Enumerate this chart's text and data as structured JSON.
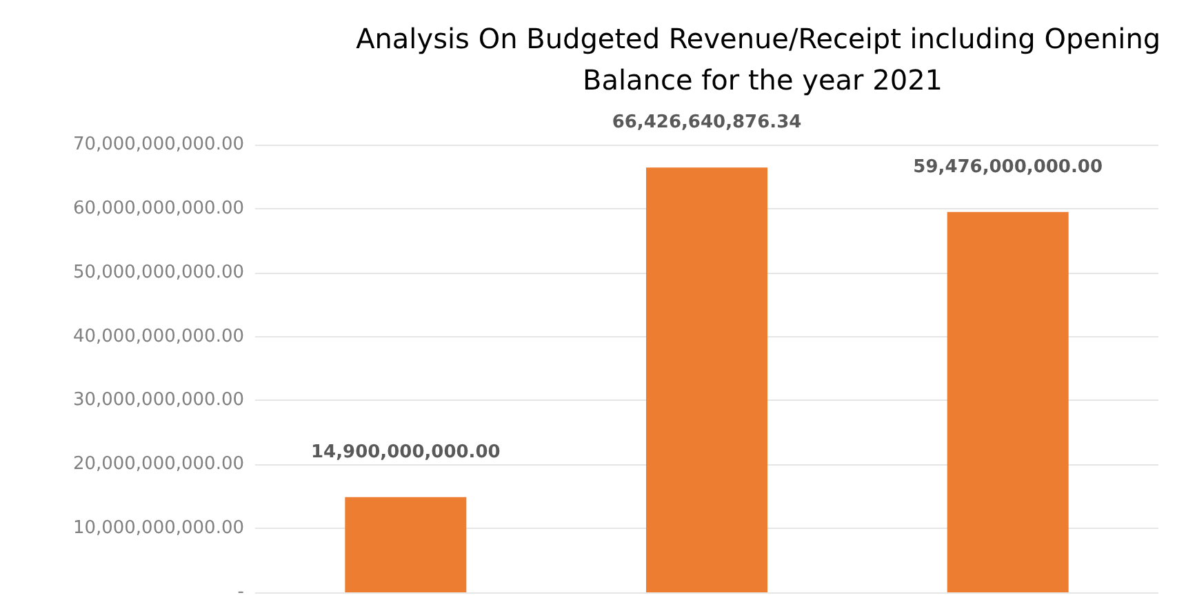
{
  "chart_data": {
    "type": "bar",
    "title": "Analysis On Budgeted Revenue/Receipt including Opening Balance for the year 2021",
    "categories": [
      null,
      null,
      null
    ],
    "values": [
      14900000000,
      66426640876.34,
      59476000000
    ],
    "color": "#ed7d31",
    "ylim": [
      0,
      70000000000
    ],
    "yticks": [
      {
        "value": 0,
        "label": "-"
      },
      {
        "value": 10000000000,
        "label": "10,000,000,000.00"
      },
      {
        "value": 20000000000,
        "label": "20,000,000,000.00"
      },
      {
        "value": 30000000000,
        "label": "30,000,000,000.00"
      },
      {
        "value": 40000000000,
        "label": "40,000,000,000.00"
      },
      {
        "value": 50000000000,
        "label": "50,000,000,000.00"
      },
      {
        "value": 60000000000,
        "label": "60,000,000,000.00"
      },
      {
        "value": 70000000000,
        "label": "70,000,000,000.00"
      }
    ],
    "value_labels": [
      "14,900,000,000.00",
      "66,426,640,876.34",
      "59,476,000,000.00"
    ],
    "grid": "y"
  }
}
